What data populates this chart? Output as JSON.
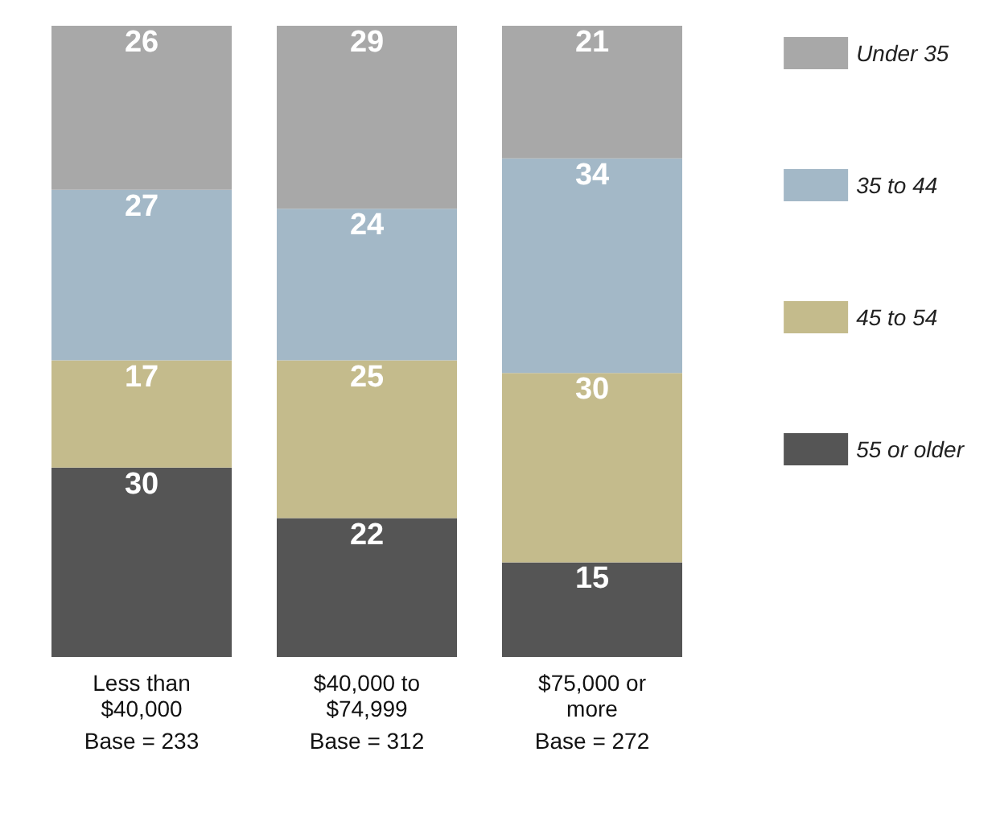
{
  "chart_data": {
    "type": "bar",
    "stacked": true,
    "categories": [
      "Less than $40,000",
      "$40,000 to $74,999",
      "$75,000 or more"
    ],
    "series": [
      {
        "name": "55 or older",
        "color": "#555555",
        "values": [
          30,
          22,
          15
        ]
      },
      {
        "name": "45 to 54",
        "color": "#c4bb8c",
        "values": [
          17,
          25,
          30
        ]
      },
      {
        "name": "35 to 44",
        "color": "#a3b8c7",
        "values": [
          27,
          24,
          34
        ]
      },
      {
        "name": "Under 35",
        "color": "#a8a8a8",
        "values": [
          26,
          29,
          21
        ]
      }
    ],
    "annotations": [
      "Base = 233",
      "Base = 312",
      "Base = 272"
    ],
    "data_labels": true,
    "legend": "right"
  }
}
